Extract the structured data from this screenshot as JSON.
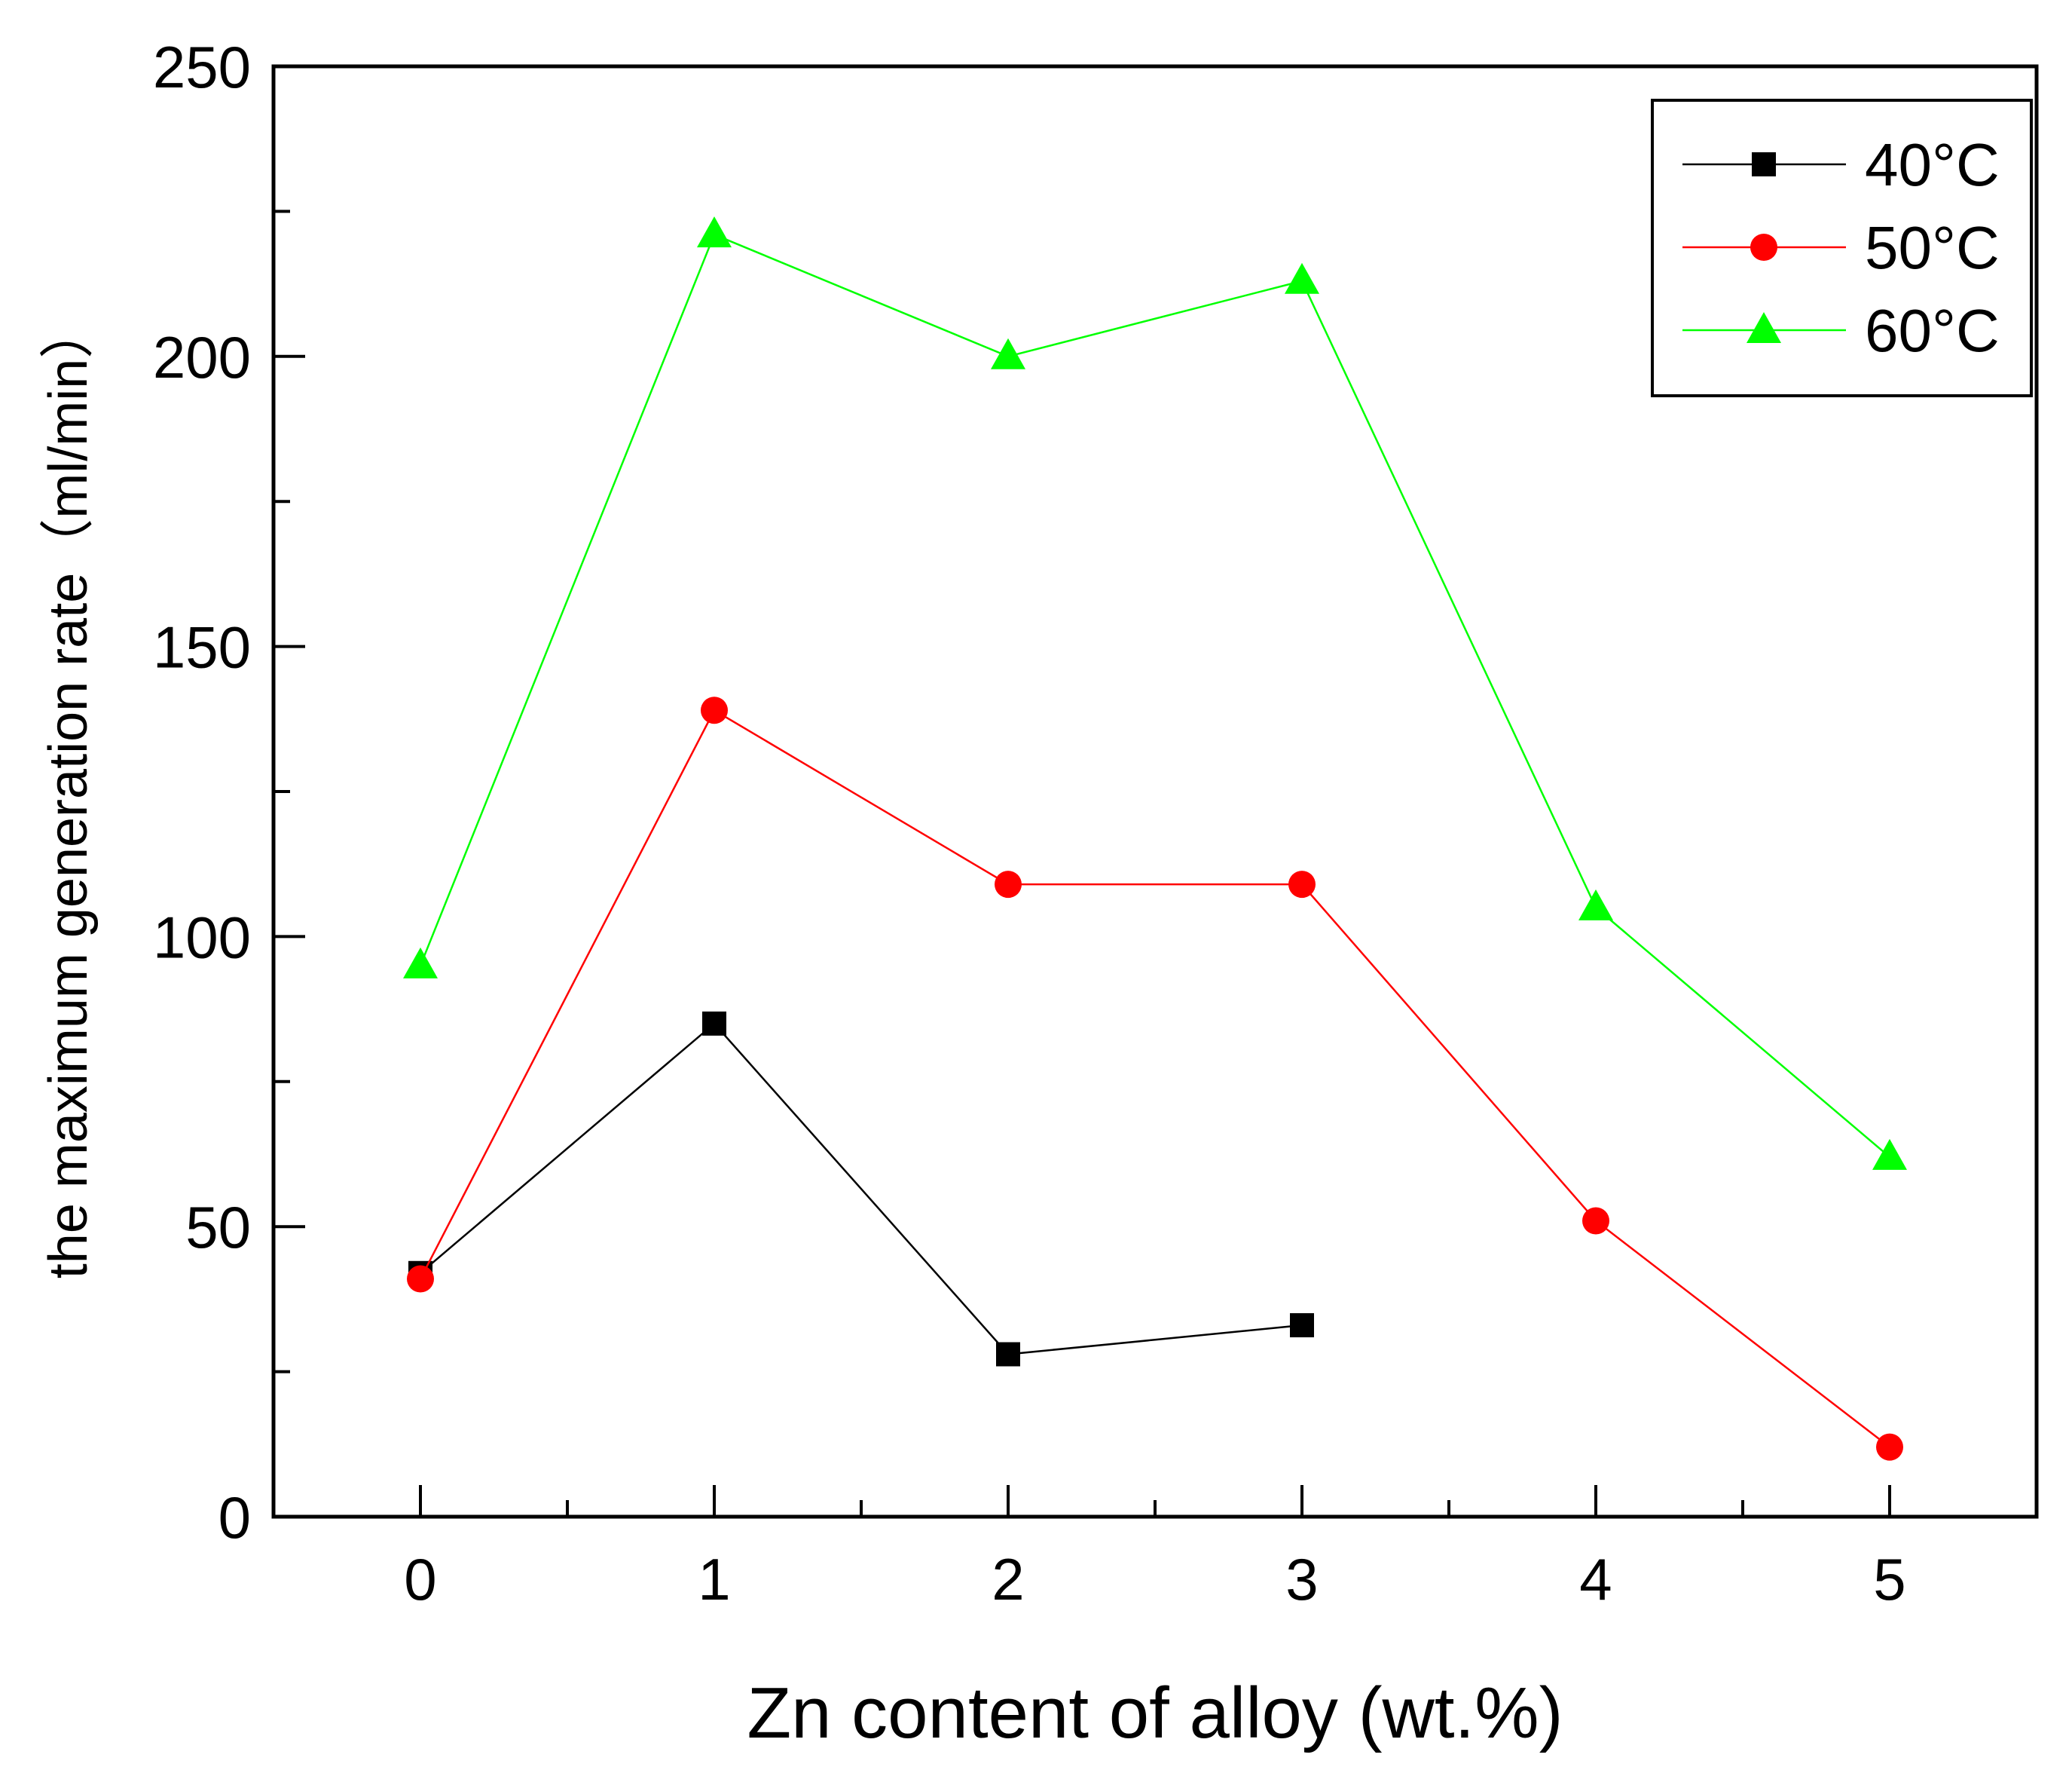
{
  "chart_data": {
    "type": "line",
    "title": "",
    "xlabel": "Zn content of alloy (wt.%)",
    "ylabel": "the maximum generation rate（ml/min）",
    "xlim": [
      -0.5,
      5.5
    ],
    "ylim": [
      0,
      250
    ],
    "xticks": [
      0,
      1,
      2,
      3,
      4,
      5
    ],
    "yticks": [
      0,
      50,
      100,
      150,
      200,
      250
    ],
    "grid": false,
    "legend_position": "top-right",
    "series": [
      {
        "name": "40°C",
        "color": "#000000",
        "marker": "square",
        "x": [
          0,
          1,
          2,
          3
        ],
        "values": [
          42,
          85,
          28,
          33
        ]
      },
      {
        "name": "50°C",
        "color": "#ff0000",
        "marker": "circle",
        "x": [
          0,
          1,
          2,
          3,
          4,
          5
        ],
        "values": [
          41,
          139,
          109,
          109,
          51,
          12
        ]
      },
      {
        "name": "60°C",
        "color": "#00ff00",
        "marker": "triangle",
        "x": [
          0,
          1,
          2,
          3,
          4,
          5
        ],
        "values": [
          95,
          221,
          200,
          213,
          105,
          62
        ]
      }
    ]
  }
}
